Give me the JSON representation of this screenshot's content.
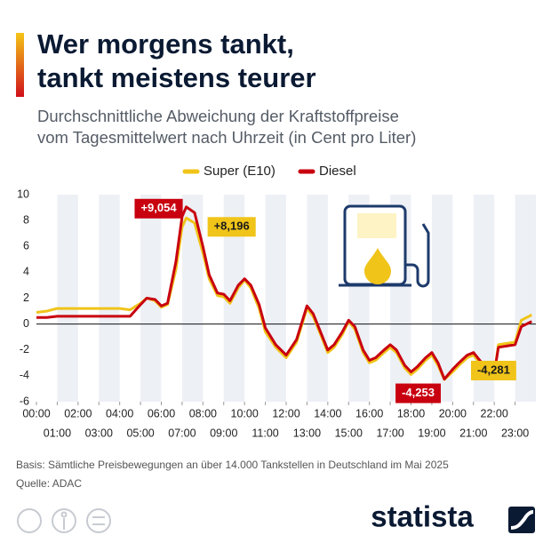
{
  "chart_data": {
    "type": "line",
    "title": [
      "Wer morgens tankt,",
      "tankt meistens teurer"
    ],
    "subtitle": [
      "Durchschnittliche Abweichung der Kraftstoffpreise",
      "vom Tagesmittelwert nach Uhrzeit (in Cent pro Liter)"
    ],
    "x": [
      0,
      0.5,
      1,
      1.5,
      2,
      2.5,
      3,
      3.5,
      4,
      4.5,
      5,
      5.3,
      5.7,
      6,
      6.3,
      6.7,
      7,
      7.2,
      7.6,
      8,
      8.3,
      8.7,
      9,
      9.3,
      9.7,
      10,
      10.3,
      10.7,
      11,
      11.5,
      12,
      12.5,
      13,
      13.3,
      13.7,
      14,
      14.3,
      14.7,
      15,
      15.3,
      15.7,
      16,
      16.3,
      16.7,
      17,
      17.3,
      17.7,
      18,
      18.3,
      18.7,
      19,
      19.3,
      19.6,
      20,
      20.3,
      20.7,
      21,
      21.3,
      21.7,
      22,
      22.2,
      23,
      23.3,
      23.8
    ],
    "series": [
      {
        "name": "Super (E10)",
        "color": "#f0c419",
        "label_text_color": "#1a1a1a",
        "values": [
          0.9,
          1.0,
          1.2,
          1.2,
          1.2,
          1.2,
          1.2,
          1.2,
          1.2,
          1.1,
          1.6,
          2.0,
          1.8,
          1.3,
          1.5,
          4.2,
          7.5,
          8.196,
          7.8,
          5.5,
          3.5,
          2.2,
          2.1,
          1.6,
          2.8,
          3.4,
          2.8,
          1.2,
          -0.6,
          -1.8,
          -2.6,
          -1.4,
          1.2,
          0.6,
          -1.0,
          -2.2,
          -1.8,
          -0.8,
          0.2,
          -0.4,
          -2.2,
          -3.0,
          -2.8,
          -2.2,
          -1.8,
          -2.2,
          -3.4,
          -3.9,
          -3.5,
          -2.8,
          -2.4,
          -3.2,
          -4.281,
          -3.7,
          -3.2,
          -2.6,
          -2.4,
          -3.0,
          -3.6,
          -3.9,
          -1.6,
          -1.4,
          0.3,
          0.7
        ],
        "value_labels": [
          null,
          null,
          null,
          null,
          null,
          null,
          null,
          null,
          null,
          null,
          null,
          null,
          null,
          null,
          null,
          null,
          null,
          "+8,196",
          null,
          null,
          null,
          null,
          null,
          null,
          null,
          null,
          null,
          null,
          null,
          null,
          null,
          null,
          null,
          null,
          null,
          null,
          null,
          null,
          null,
          null,
          null,
          null,
          null,
          null,
          null,
          null,
          null,
          null,
          null,
          null,
          null,
          null,
          "-4,281",
          null,
          null,
          null,
          null,
          null,
          null,
          null,
          null,
          null,
          null,
          null
        ]
      },
      {
        "name": "Diesel",
        "color": "#c8000f",
        "label_text_color": "#ffffff",
        "values": [
          0.5,
          0.5,
          0.6,
          0.6,
          0.6,
          0.6,
          0.6,
          0.6,
          0.6,
          0.6,
          1.5,
          2.0,
          1.9,
          1.4,
          1.6,
          4.8,
          8.3,
          9.054,
          8.6,
          6.0,
          3.8,
          2.4,
          2.3,
          1.8,
          3.0,
          3.5,
          3.0,
          1.5,
          -0.3,
          -1.6,
          -2.4,
          -1.2,
          1.4,
          0.8,
          -0.8,
          -2.0,
          -1.6,
          -0.6,
          0.3,
          -0.2,
          -2.0,
          -2.8,
          -2.6,
          -2.0,
          -1.6,
          -2.0,
          -3.2,
          -3.7,
          -3.3,
          -2.6,
          -2.2,
          -3.0,
          -4.253,
          -3.5,
          -3.0,
          -2.4,
          -2.2,
          -2.8,
          -3.5,
          -3.8,
          -1.8,
          -1.6,
          -0.2,
          0.2
        ],
        "value_labels": [
          null,
          null,
          null,
          null,
          null,
          null,
          null,
          null,
          null,
          null,
          null,
          null,
          null,
          null,
          null,
          null,
          null,
          "+9,054",
          null,
          null,
          null,
          null,
          null,
          null,
          null,
          null,
          null,
          null,
          null,
          null,
          null,
          null,
          null,
          null,
          null,
          null,
          null,
          null,
          null,
          null,
          null,
          null,
          null,
          null,
          null,
          null,
          null,
          null,
          null,
          null,
          null,
          null,
          "-4,253",
          null,
          null,
          null,
          null,
          null,
          null,
          null,
          null,
          null,
          null,
          null
        ]
      }
    ],
    "xlim": [
      0,
      24
    ],
    "xticks": [
      {
        "value": 0,
        "label": "00:00"
      },
      {
        "value": 1,
        "label": "01:00"
      },
      {
        "value": 2,
        "label": "02:00"
      },
      {
        "value": 3,
        "label": "03:00"
      },
      {
        "value": 4,
        "label": "04:00"
      },
      {
        "value": 5,
        "label": "05:00"
      },
      {
        "value": 6,
        "label": "06:00"
      },
      {
        "value": 7,
        "label": "07:00"
      },
      {
        "value": 8,
        "label": "08:00"
      },
      {
        "value": 9,
        "label": "09:00"
      },
      {
        "value": 10,
        "label": "10:00"
      },
      {
        "value": 11,
        "label": "11:00"
      },
      {
        "value": 12,
        "label": "12:00"
      },
      {
        "value": 13,
        "label": "13:00"
      },
      {
        "value": 14,
        "label": "14:00"
      },
      {
        "value": 15,
        "label": "15:00"
      },
      {
        "value": 16,
        "label": "16:00"
      },
      {
        "value": 17,
        "label": "17:00"
      },
      {
        "value": 18,
        "label": "18:00"
      },
      {
        "value": 19,
        "label": "19:00"
      },
      {
        "value": 20,
        "label": "20:00"
      },
      {
        "value": 21,
        "label": "21:00"
      },
      {
        "value": 22,
        "label": "22:00"
      },
      {
        "value": 23,
        "label": "23:00"
      }
    ],
    "ylim": [
      -6,
      10
    ],
    "yticks": [
      -6,
      -4,
      -2,
      0,
      2,
      4,
      6,
      8,
      10
    ],
    "grid": false,
    "zero_line": true,
    "band_color": "#edf0f5",
    "source": [
      "Basis: Sämtliche Preisbewegungen an über 14.000 Tankstellen in Deutschland im Mai 2025",
      "Quelle: ADAC"
    ],
    "brand": "statista"
  }
}
